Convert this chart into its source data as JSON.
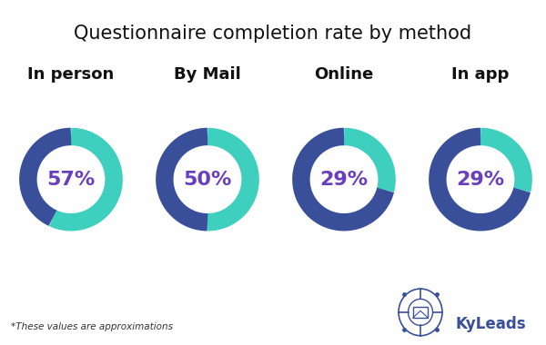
{
  "title": "Questionnaire completion rate by method",
  "methods": [
    "In person",
    "By Mail",
    "Online",
    "In app"
  ],
  "values": [
    57,
    50,
    29,
    29
  ],
  "teal_color": "#3ecfbe",
  "navy_color": "#3a4f9a",
  "text_color": "#6a3fbf",
  "label_color": "#111111",
  "bg_color": "#ffffff",
  "footnote": "*These values are approximations",
  "title_fontsize": 15,
  "method_fontsize": 13,
  "value_fontsize": 16
}
